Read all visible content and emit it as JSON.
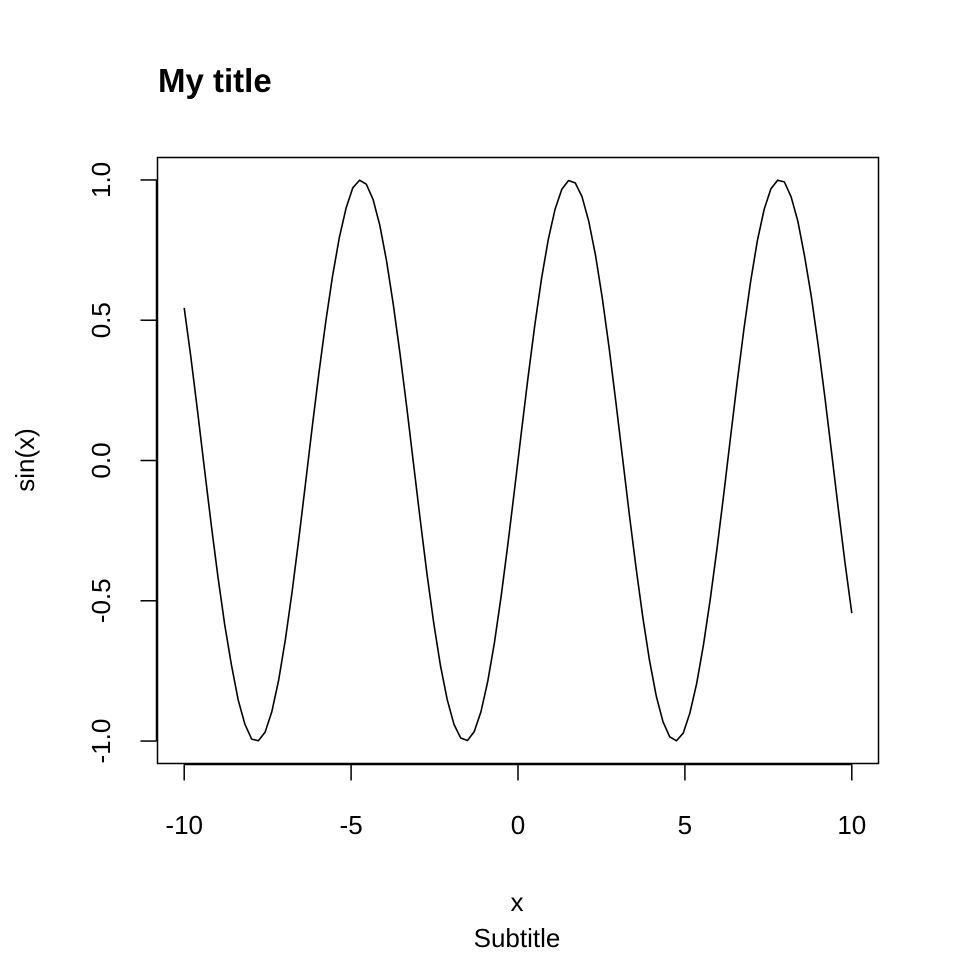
{
  "chart_data": {
    "type": "line",
    "title": "My title",
    "subtitle": "Subtitle",
    "xlabel": "x",
    "ylabel": "sin(x)",
    "xlim": [
      -10.8,
      10.8
    ],
    "ylim": [
      -1.08,
      1.08
    ],
    "x_ticks": [
      -10,
      -5,
      0,
      5,
      10
    ],
    "x_tick_labels": [
      "-10",
      "-5",
      "0",
      "5",
      "10"
    ],
    "y_ticks": [
      -1.0,
      -0.5,
      0.0,
      0.5,
      1.0
    ],
    "y_tick_labels": [
      "-1.0",
      "-0.5",
      "0.0",
      "0.5",
      "1.0"
    ],
    "grid": false,
    "legend": "none",
    "line_color": "#000000",
    "series": [
      {
        "x": [
          -10.0,
          -9.798,
          -9.596,
          -9.394,
          -9.192,
          -8.99,
          -8.788,
          -8.586,
          -8.384,
          -8.182,
          -7.98,
          -7.778,
          -7.576,
          -7.374,
          -7.172,
          -6.97,
          -6.768,
          -6.566,
          -6.364,
          -6.162,
          -5.96,
          -5.758,
          -5.556,
          -5.354,
          -5.152,
          -4.949,
          -4.747,
          -4.545,
          -4.343,
          -4.141,
          -3.939,
          -3.737,
          -3.535,
          -3.333,
          -3.131,
          -2.929,
          -2.727,
          -2.525,
          -2.323,
          -2.121,
          -1.919,
          -1.717,
          -1.515,
          -1.313,
          -1.111,
          -0.909,
          -0.707,
          -0.505,
          -0.303,
          -0.101,
          0.101,
          0.303,
          0.505,
          0.707,
          0.909,
          1.111,
          1.313,
          1.515,
          1.717,
          1.919,
          2.121,
          2.323,
          2.525,
          2.727,
          2.929,
          3.131,
          3.333,
          3.535,
          3.737,
          3.939,
          4.141,
          4.343,
          4.545,
          4.747,
          4.949,
          5.152,
          5.354,
          5.556,
          5.758,
          5.96,
          6.162,
          6.364,
          6.566,
          6.768,
          6.97,
          7.172,
          7.374,
          7.576,
          7.778,
          7.98,
          8.182,
          8.384,
          8.586,
          8.788,
          8.99,
          9.192,
          9.394,
          9.596,
          9.798,
          10.0
        ],
        "y": [
          0.544,
          0.366,
          0.172,
          -0.029,
          -0.227,
          -0.414,
          -0.584,
          -0.728,
          -0.853,
          -0.94,
          -0.993,
          -0.999,
          -0.968,
          -0.895,
          -0.784,
          -0.639,
          -0.468,
          -0.279,
          -0.08,
          0.122,
          0.316,
          0.496,
          0.657,
          0.794,
          0.899,
          0.972,
          0.999,
          0.985,
          0.931,
          0.839,
          0.712,
          0.557,
          0.381,
          0.19,
          -0.011,
          -0.211,
          -0.404,
          -0.579,
          -0.731,
          -0.852,
          -0.94,
          -0.989,
          -0.998,
          -0.967,
          -0.896,
          -0.789,
          -0.65,
          -0.484,
          -0.298,
          -0.101,
          0.101,
          0.298,
          0.484,
          0.65,
          0.789,
          0.896,
          0.967,
          0.998,
          0.989,
          0.94,
          0.852,
          0.731,
          0.579,
          0.404,
          0.211,
          0.011,
          -0.19,
          -0.381,
          -0.557,
          -0.712,
          -0.839,
          -0.931,
          -0.985,
          -0.999,
          -0.972,
          -0.899,
          -0.794,
          -0.657,
          -0.496,
          -0.316,
          -0.122,
          0.08,
          0.279,
          0.468,
          0.639,
          0.784,
          0.895,
          0.968,
          0.999,
          0.993,
          0.94,
          0.853,
          0.728,
          0.584,
          0.414,
          0.227,
          0.029,
          -0.172,
          -0.366,
          -0.544
        ]
      }
    ]
  }
}
